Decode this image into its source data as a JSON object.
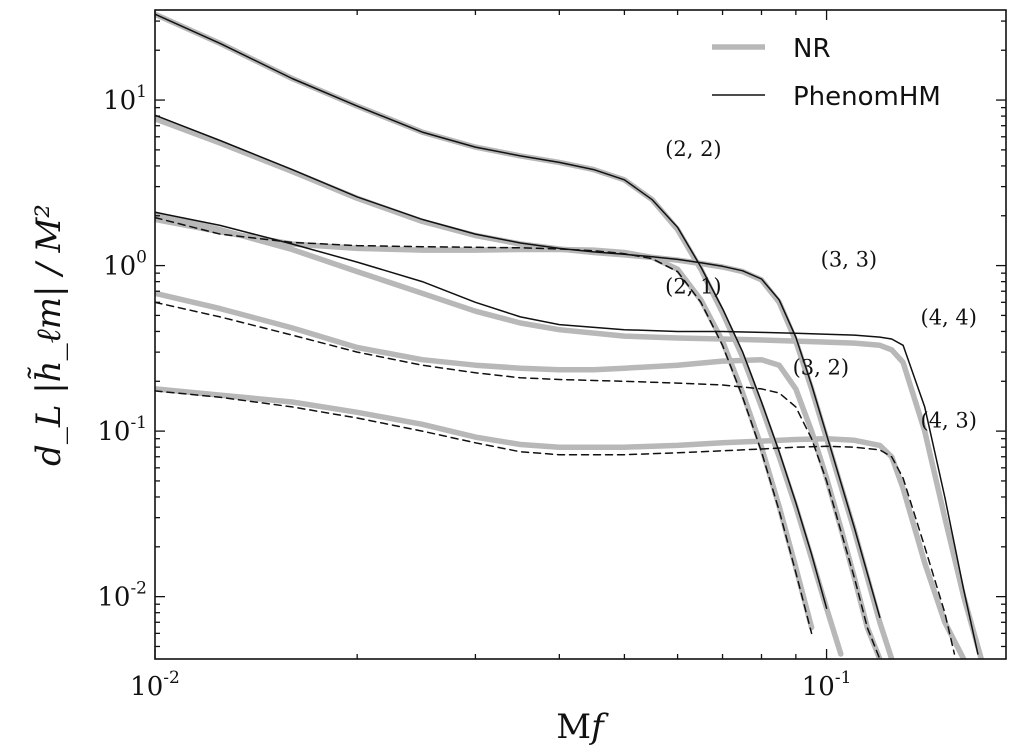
{
  "chart_data": {
    "type": "line",
    "x_scale": "log",
    "y_scale": "log",
    "xlim": [
      0.01,
      0.185
    ],
    "ylim": [
      0.0042,
      35
    ],
    "xlabel": "Mf",
    "ylabel": "d_L |h̃_ℓm| / M²",
    "x_ticks": [
      {
        "value": 0.01,
        "label": "10",
        "exp": "-2"
      },
      {
        "value": 0.1,
        "label": "10",
        "exp": "-1"
      }
    ],
    "y_ticks": [
      {
        "value": 0.01,
        "label": "10",
        "exp": "-2"
      },
      {
        "value": 0.1,
        "label": "10",
        "exp": "-1"
      },
      {
        "value": 1,
        "label": "10",
        "exp": "0"
      },
      {
        "value": 10,
        "label": "10",
        "exp": "1"
      }
    ],
    "legend": {
      "position": "top-right",
      "entries": [
        {
          "label": "NR",
          "color": "#b8b8b8"
        },
        {
          "label": "PhenomHM",
          "color": "#111111"
        }
      ]
    },
    "colors": {
      "nr": "#b8b8b8",
      "phenom": "#111111"
    },
    "annotations": [
      {
        "text": "(2, 2)",
        "x": 0.0575,
        "y": 4.6
      },
      {
        "text": "(3, 3)",
        "x": 0.098,
        "y": 0.99
      },
      {
        "text": "(2, 1)",
        "x": 0.0575,
        "y": 0.68
      },
      {
        "text": "(4, 4)",
        "x": 0.138,
        "y": 0.44
      },
      {
        "text": "(3, 2)",
        "x": 0.089,
        "y": 0.22
      },
      {
        "text": "(4, 3)",
        "x": 0.138,
        "y": 0.105
      }
    ],
    "series": [
      {
        "mode": "(2, 2)",
        "model": "NR",
        "style": "thick-gray",
        "x": [
          0.01,
          0.0125,
          0.016,
          0.02,
          0.025,
          0.03,
          0.035,
          0.04,
          0.045,
          0.05,
          0.055,
          0.06,
          0.065,
          0.07,
          0.075,
          0.08,
          0.085,
          0.09,
          0.095,
          0.1,
          0.105
        ],
        "y": [
          33,
          22,
          13.5,
          9.2,
          6.4,
          5.2,
          4.6,
          4.2,
          3.8,
          3.3,
          2.5,
          1.65,
          0.95,
          0.52,
          0.28,
          0.14,
          0.07,
          0.035,
          0.017,
          0.0085,
          0.0045
        ]
      },
      {
        "mode": "(2, 2)",
        "model": "PhenomHM",
        "style": "solid",
        "x": [
          0.01,
          0.0125,
          0.016,
          0.02,
          0.025,
          0.03,
          0.035,
          0.04,
          0.045,
          0.05,
          0.055,
          0.06,
          0.065,
          0.07,
          0.075,
          0.08,
          0.085,
          0.09,
          0.095,
          0.1
        ],
        "y": [
          33,
          22,
          13.5,
          9.2,
          6.4,
          5.2,
          4.6,
          4.2,
          3.8,
          3.3,
          2.5,
          1.7,
          0.98,
          0.55,
          0.3,
          0.15,
          0.075,
          0.037,
          0.018,
          0.0085
        ]
      },
      {
        "mode": "(3, 3)",
        "model": "NR",
        "style": "thick-gray",
        "x": [
          0.01,
          0.0125,
          0.016,
          0.02,
          0.025,
          0.03,
          0.035,
          0.04,
          0.045,
          0.05,
          0.055,
          0.06,
          0.065,
          0.07,
          0.075,
          0.08,
          0.085,
          0.09,
          0.095,
          0.1,
          0.11,
          0.12,
          0.125
        ],
        "y": [
          7.7,
          5.5,
          3.7,
          2.55,
          1.85,
          1.52,
          1.35,
          1.26,
          1.2,
          1.16,
          1.12,
          1.08,
          1.03,
          0.98,
          0.92,
          0.82,
          0.6,
          0.35,
          0.18,
          0.09,
          0.025,
          0.007,
          0.0042
        ]
      },
      {
        "mode": "(3, 3)",
        "model": "PhenomHM",
        "style": "solid",
        "x": [
          0.01,
          0.0125,
          0.016,
          0.02,
          0.025,
          0.03,
          0.035,
          0.04,
          0.045,
          0.05,
          0.055,
          0.06,
          0.065,
          0.07,
          0.075,
          0.08,
          0.085,
          0.09,
          0.095,
          0.1,
          0.11,
          0.12
        ],
        "y": [
          8.1,
          5.7,
          3.8,
          2.6,
          1.9,
          1.55,
          1.37,
          1.27,
          1.21,
          1.17,
          1.13,
          1.09,
          1.04,
          0.99,
          0.93,
          0.83,
          0.62,
          0.37,
          0.19,
          0.095,
          0.026,
          0.0075
        ]
      },
      {
        "mode": "(2, 1)",
        "model": "NR",
        "style": "thick-gray",
        "x": [
          0.01,
          0.0125,
          0.016,
          0.02,
          0.025,
          0.03,
          0.035,
          0.04,
          0.045,
          0.05,
          0.055,
          0.06,
          0.065,
          0.07,
          0.075,
          0.08,
          0.085,
          0.09,
          0.095
        ],
        "y": [
          1.9,
          1.6,
          1.35,
          1.27,
          1.24,
          1.24,
          1.25,
          1.25,
          1.24,
          1.2,
          1.12,
          0.95,
          0.62,
          0.35,
          0.17,
          0.08,
          0.035,
          0.015,
          0.0065
        ]
      },
      {
        "mode": "(2, 1)",
        "model": "PhenomHM",
        "style": "dashed",
        "x": [
          0.01,
          0.0125,
          0.016,
          0.02,
          0.025,
          0.03,
          0.035,
          0.04,
          0.045,
          0.05,
          0.055,
          0.06,
          0.065,
          0.07,
          0.075,
          0.08,
          0.085,
          0.09,
          0.095
        ],
        "y": [
          1.95,
          1.55,
          1.38,
          1.32,
          1.3,
          1.29,
          1.28,
          1.26,
          1.23,
          1.18,
          1.1,
          0.92,
          0.6,
          0.33,
          0.16,
          0.075,
          0.033,
          0.014,
          0.006
        ]
      },
      {
        "mode": "(4, 4)",
        "model": "NR",
        "style": "thick-gray",
        "x": [
          0.01,
          0.0125,
          0.016,
          0.02,
          0.025,
          0.03,
          0.035,
          0.04,
          0.05,
          0.06,
          0.07,
          0.08,
          0.09,
          0.1,
          0.11,
          0.12,
          0.125,
          0.13,
          0.14,
          0.15,
          0.16,
          0.17
        ],
        "y": [
          2.05,
          1.65,
          1.25,
          0.92,
          0.68,
          0.53,
          0.45,
          0.41,
          0.375,
          0.365,
          0.36,
          0.355,
          0.35,
          0.345,
          0.34,
          0.33,
          0.31,
          0.26,
          0.1,
          0.03,
          0.01,
          0.0042
        ]
      },
      {
        "mode": "(4, 4)",
        "model": "PhenomHM",
        "style": "solid",
        "x": [
          0.01,
          0.0125,
          0.016,
          0.02,
          0.025,
          0.03,
          0.035,
          0.04,
          0.05,
          0.06,
          0.07,
          0.08,
          0.09,
          0.1,
          0.11,
          0.12,
          0.125,
          0.13,
          0.14,
          0.15,
          0.16,
          0.168
        ],
        "y": [
          2.1,
          1.75,
          1.35,
          1.05,
          0.8,
          0.6,
          0.49,
          0.44,
          0.41,
          0.4,
          0.4,
          0.395,
          0.39,
          0.385,
          0.38,
          0.37,
          0.36,
          0.33,
          0.14,
          0.04,
          0.011,
          0.0045
        ]
      },
      {
        "mode": "(3, 2)",
        "model": "NR",
        "style": "thick-gray",
        "x": [
          0.01,
          0.0125,
          0.016,
          0.02,
          0.025,
          0.03,
          0.035,
          0.04,
          0.045,
          0.05,
          0.06,
          0.07,
          0.08,
          0.085,
          0.09,
          0.095,
          0.1,
          0.105,
          0.11,
          0.115,
          0.12
        ],
        "y": [
          0.68,
          0.55,
          0.42,
          0.32,
          0.27,
          0.25,
          0.24,
          0.235,
          0.235,
          0.24,
          0.25,
          0.265,
          0.27,
          0.25,
          0.18,
          0.1,
          0.052,
          0.026,
          0.013,
          0.0065,
          0.0042
        ]
      },
      {
        "mode": "(3, 2)",
        "model": "PhenomHM",
        "style": "dashed",
        "x": [
          0.01,
          0.0125,
          0.016,
          0.02,
          0.025,
          0.03,
          0.035,
          0.04,
          0.05,
          0.06,
          0.07,
          0.08,
          0.085,
          0.09,
          0.095,
          0.1,
          0.105,
          0.11,
          0.115,
          0.12
        ],
        "y": [
          0.6,
          0.49,
          0.38,
          0.3,
          0.25,
          0.225,
          0.21,
          0.205,
          0.2,
          0.195,
          0.19,
          0.18,
          0.17,
          0.14,
          0.09,
          0.05,
          0.025,
          0.013,
          0.0065,
          0.0042
        ]
      },
      {
        "mode": "(4, 3)",
        "model": "NR",
        "style": "thick-gray",
        "x": [
          0.01,
          0.0125,
          0.016,
          0.02,
          0.025,
          0.03,
          0.035,
          0.04,
          0.05,
          0.06,
          0.07,
          0.08,
          0.09,
          0.1,
          0.11,
          0.12,
          0.125,
          0.13,
          0.14,
          0.15,
          0.16
        ],
        "y": [
          0.18,
          0.165,
          0.15,
          0.13,
          0.11,
          0.092,
          0.083,
          0.08,
          0.08,
          0.082,
          0.085,
          0.087,
          0.089,
          0.09,
          0.088,
          0.082,
          0.07,
          0.045,
          0.016,
          0.007,
          0.0042
        ]
      },
      {
        "mode": "(4, 3)",
        "model": "PhenomHM",
        "style": "dashed",
        "x": [
          0.01,
          0.0125,
          0.016,
          0.02,
          0.025,
          0.03,
          0.035,
          0.04,
          0.05,
          0.06,
          0.07,
          0.08,
          0.09,
          0.1,
          0.11,
          0.12,
          0.125,
          0.13,
          0.14,
          0.15,
          0.155
        ],
        "y": [
          0.175,
          0.16,
          0.14,
          0.12,
          0.1,
          0.085,
          0.075,
          0.072,
          0.072,
          0.074,
          0.076,
          0.078,
          0.08,
          0.081,
          0.08,
          0.077,
          0.07,
          0.052,
          0.02,
          0.008,
          0.0045
        ]
      }
    ]
  }
}
